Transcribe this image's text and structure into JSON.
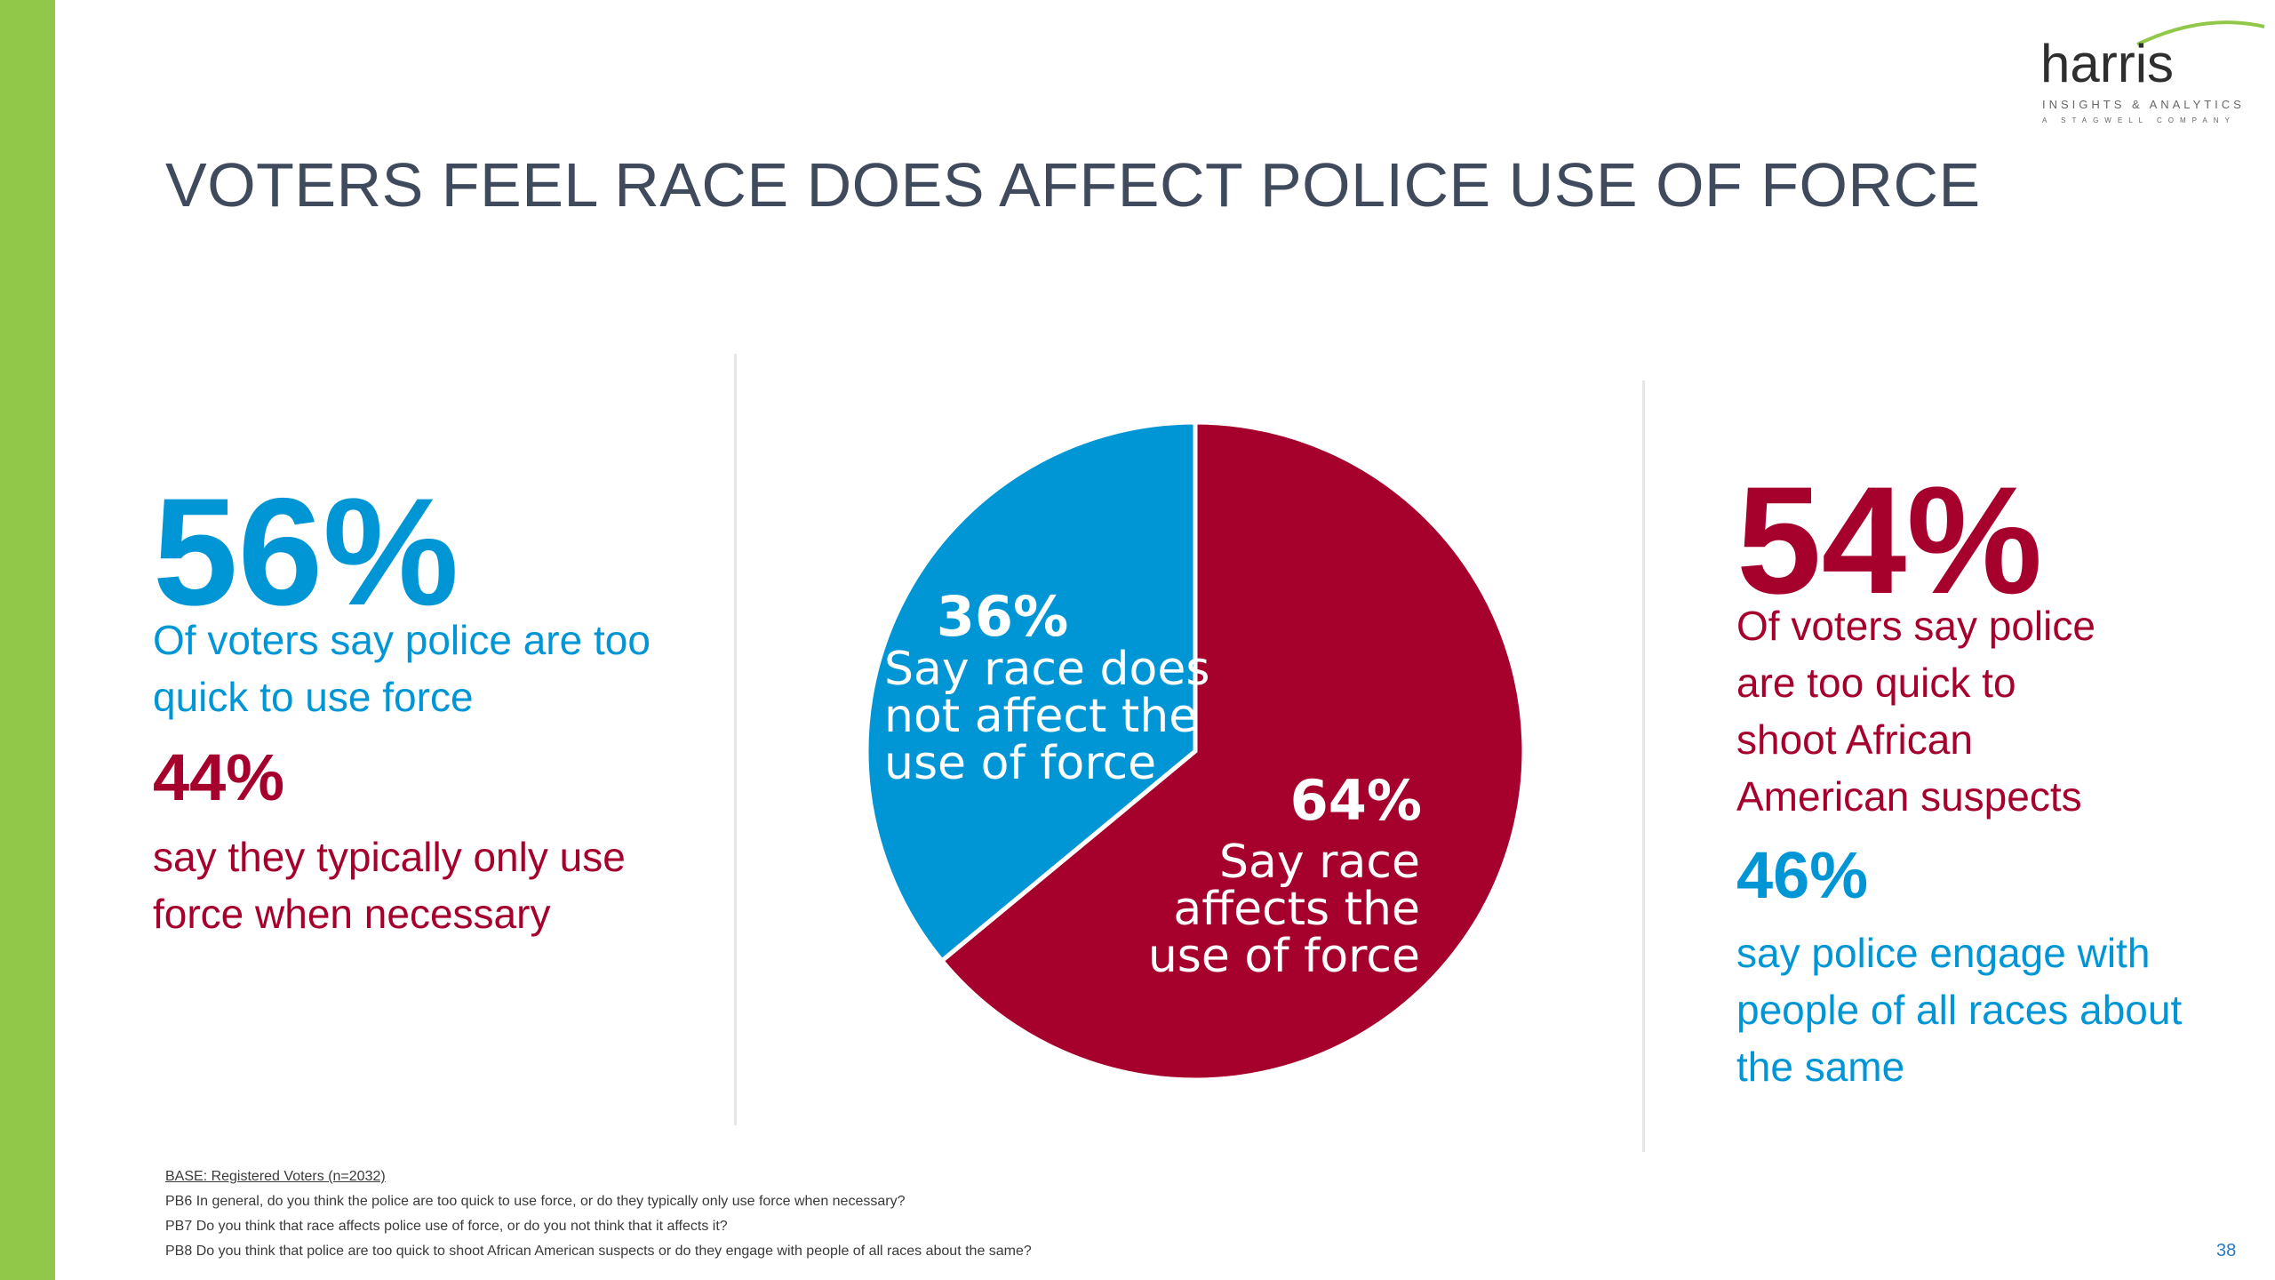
{
  "title": "VOTERS FEEL RACE DOES AFFECT POLICE USE OF FORCE",
  "logo": {
    "word": "harris",
    "tagline": "INSIGHTS & ANALYTICS",
    "subline": "A STAGWELL COMPANY"
  },
  "colors": {
    "accent_bar": "#92c84a",
    "blue": "#0096d6",
    "red": "#a6002c",
    "title": "#3f4a5c"
  },
  "left_panel": {
    "stat1_value": "56%",
    "stat1_text_line1": "Of voters say police are too",
    "stat1_text_line2": "quick to use force",
    "stat2_value": "44%",
    "stat2_text_line1": "say they typically only use",
    "stat2_text_line2": "force when necessary"
  },
  "right_panel": {
    "stat1_value": "54%",
    "stat1_text_line1": "Of voters say police",
    "stat1_text_line2": "are too quick to",
    "stat1_text_line3": "shoot African",
    "stat1_text_line4": "American suspects",
    "stat2_value": "46%",
    "stat2_text_line1": "say police engage with",
    "stat2_text_line2": "people of all races about",
    "stat2_text_line3": "the same"
  },
  "chart_data": {
    "type": "pie",
    "title": "",
    "slices": [
      {
        "value": 64,
        "color": "#a6002c",
        "label_pct": "64%",
        "label_lines": [
          "Say race",
          "affects the",
          "use of force"
        ]
      },
      {
        "value": 36,
        "color": "#0096d6",
        "label_pct": "36%",
        "label_lines": [
          "Say race does",
          "not affect the",
          "use of force"
        ]
      }
    ]
  },
  "footnotes": {
    "base": "BASE: Registered Voters (n=2032)",
    "pb6": "PB6 In general, do you think the police are too quick to use force, or do they typically only use force when necessary?",
    "pb7": "PB7 Do you think that race affects police use of force, or do you not think that it affects it?",
    "pb8": "PB8 Do you think that police are too quick to shoot African American suspects or do they engage with people of all races about the same?"
  },
  "page_number": "38"
}
